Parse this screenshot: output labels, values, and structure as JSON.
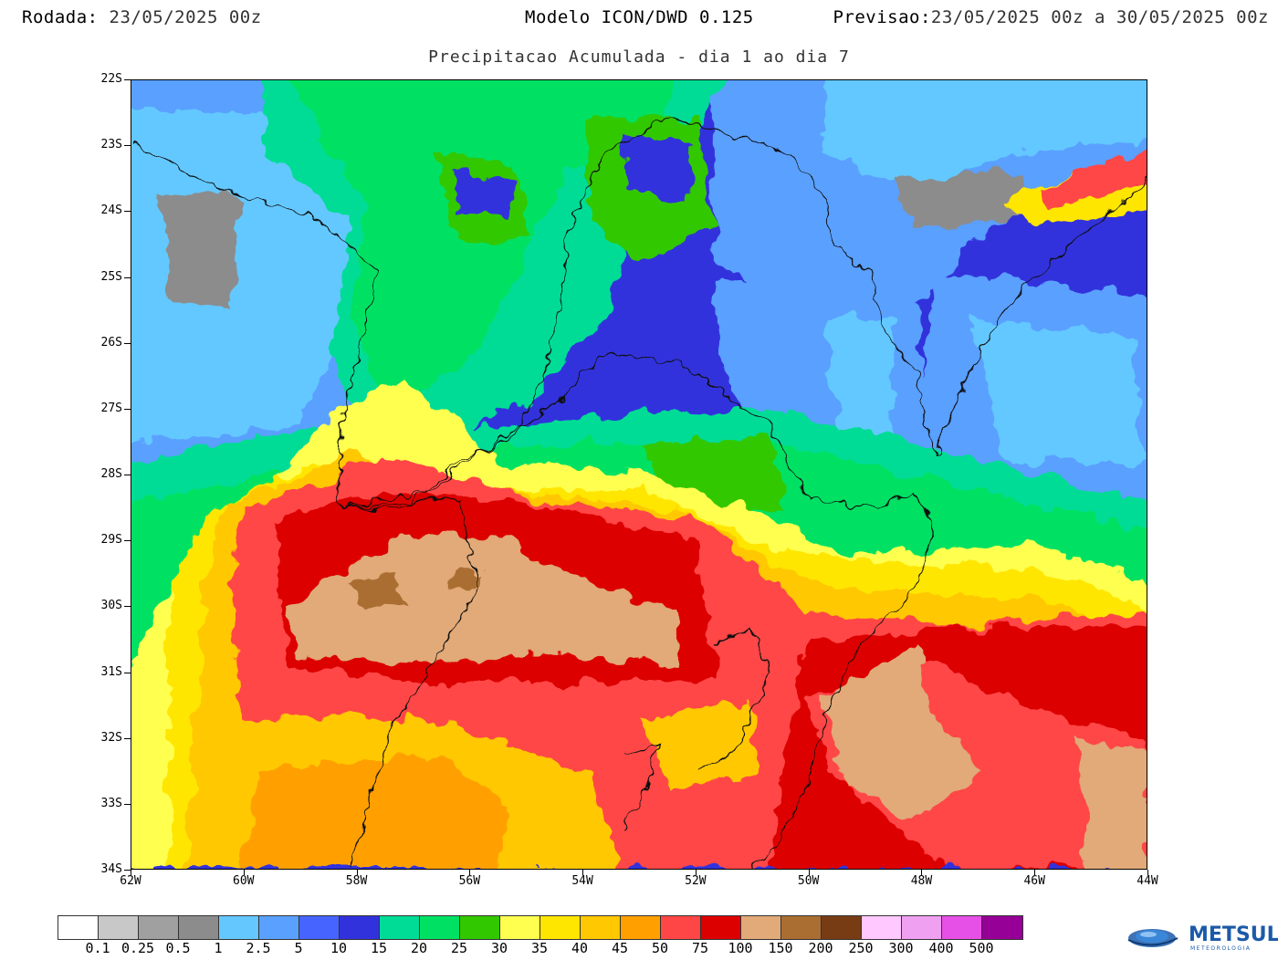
{
  "header": {
    "rodada_label": "Rodada:",
    "rodada_value": "23/05/2025 00z",
    "model": "Modelo ICON/DWD 0.125",
    "previsao_label": "Previsao:",
    "previsao_value": "23/05/2025 00z a 30/05/2025 00z"
  },
  "subtitle": "Precipitacao Acumulada - dia 1 ao dia 7",
  "map": {
    "lat_labels": [
      "22S",
      "23S",
      "24S",
      "25S",
      "26S",
      "27S",
      "28S",
      "29S",
      "30S",
      "31S",
      "32S",
      "33S",
      "34S"
    ],
    "lon_labels": [
      "62W",
      "60W",
      "58W",
      "56W",
      "54W",
      "52W",
      "50W",
      "48W",
      "46W",
      "44W"
    ],
    "lat_range": [
      -34,
      -22
    ],
    "lon_range": [
      -62,
      -44
    ]
  },
  "legend": {
    "colors": [
      "#ffffff",
      "#c8c8c8",
      "#a0a0a0",
      "#8c8c8c",
      "#64c8ff",
      "#5aa0ff",
      "#4664ff",
      "#3232dc",
      "#00dc96",
      "#00e164",
      "#32c800",
      "#ffff50",
      "#ffe600",
      "#ffc800",
      "#ffa000",
      "#ff4646",
      "#dc0000",
      "#e1aa78",
      "#aa6e32",
      "#783c14",
      "#ffc8ff",
      "#f0a0f0",
      "#e650e6",
      "#960096"
    ],
    "labels": [
      "0.1",
      "0.25",
      "0.5",
      "1",
      "2.5",
      "5",
      "10",
      "15",
      "20",
      "25",
      "30",
      "35",
      "40",
      "45",
      "50",
      "75",
      "100",
      "150",
      "200",
      "250",
      "300",
      "400",
      "500"
    ]
  },
  "logo": {
    "name": "METSUL",
    "sub": "METEOROLOGIA",
    "icon": "globe-icon"
  }
}
